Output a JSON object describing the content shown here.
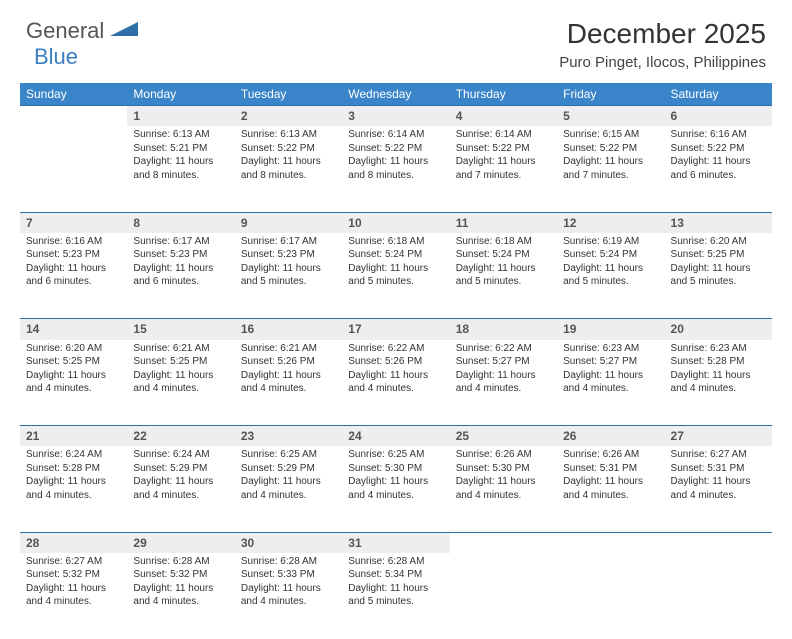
{
  "logo": {
    "general": "General",
    "blue": "Blue",
    "shape_color": "#2e6fa8"
  },
  "title": "December 2025",
  "location": "Puro Pinget, Ilocos, Philippines",
  "header_bg": "#3a85c9",
  "header_fg": "#ffffff",
  "daynum_bg": "#eceef0",
  "divider_color": "#2e6fa8",
  "text_color": "#333333",
  "weekdays": [
    "Sunday",
    "Monday",
    "Tuesday",
    "Wednesday",
    "Thursday",
    "Friday",
    "Saturday"
  ],
  "weeks": [
    {
      "nums": [
        "",
        "1",
        "2",
        "3",
        "4",
        "5",
        "6"
      ],
      "cells": [
        null,
        {
          "sunrise": "Sunrise: 6:13 AM",
          "sunset": "Sunset: 5:21 PM",
          "day1": "Daylight: 11 hours",
          "day2": "and 8 minutes."
        },
        {
          "sunrise": "Sunrise: 6:13 AM",
          "sunset": "Sunset: 5:22 PM",
          "day1": "Daylight: 11 hours",
          "day2": "and 8 minutes."
        },
        {
          "sunrise": "Sunrise: 6:14 AM",
          "sunset": "Sunset: 5:22 PM",
          "day1": "Daylight: 11 hours",
          "day2": "and 8 minutes."
        },
        {
          "sunrise": "Sunrise: 6:14 AM",
          "sunset": "Sunset: 5:22 PM",
          "day1": "Daylight: 11 hours",
          "day2": "and 7 minutes."
        },
        {
          "sunrise": "Sunrise: 6:15 AM",
          "sunset": "Sunset: 5:22 PM",
          "day1": "Daylight: 11 hours",
          "day2": "and 7 minutes."
        },
        {
          "sunrise": "Sunrise: 6:16 AM",
          "sunset": "Sunset: 5:22 PM",
          "day1": "Daylight: 11 hours",
          "day2": "and 6 minutes."
        }
      ]
    },
    {
      "nums": [
        "7",
        "8",
        "9",
        "10",
        "11",
        "12",
        "13"
      ],
      "cells": [
        {
          "sunrise": "Sunrise: 6:16 AM",
          "sunset": "Sunset: 5:23 PM",
          "day1": "Daylight: 11 hours",
          "day2": "and 6 minutes."
        },
        {
          "sunrise": "Sunrise: 6:17 AM",
          "sunset": "Sunset: 5:23 PM",
          "day1": "Daylight: 11 hours",
          "day2": "and 6 minutes."
        },
        {
          "sunrise": "Sunrise: 6:17 AM",
          "sunset": "Sunset: 5:23 PM",
          "day1": "Daylight: 11 hours",
          "day2": "and 5 minutes."
        },
        {
          "sunrise": "Sunrise: 6:18 AM",
          "sunset": "Sunset: 5:24 PM",
          "day1": "Daylight: 11 hours",
          "day2": "and 5 minutes."
        },
        {
          "sunrise": "Sunrise: 6:18 AM",
          "sunset": "Sunset: 5:24 PM",
          "day1": "Daylight: 11 hours",
          "day2": "and 5 minutes."
        },
        {
          "sunrise": "Sunrise: 6:19 AM",
          "sunset": "Sunset: 5:24 PM",
          "day1": "Daylight: 11 hours",
          "day2": "and 5 minutes."
        },
        {
          "sunrise": "Sunrise: 6:20 AM",
          "sunset": "Sunset: 5:25 PM",
          "day1": "Daylight: 11 hours",
          "day2": "and 5 minutes."
        }
      ]
    },
    {
      "nums": [
        "14",
        "15",
        "16",
        "17",
        "18",
        "19",
        "20"
      ],
      "cells": [
        {
          "sunrise": "Sunrise: 6:20 AM",
          "sunset": "Sunset: 5:25 PM",
          "day1": "Daylight: 11 hours",
          "day2": "and 4 minutes."
        },
        {
          "sunrise": "Sunrise: 6:21 AM",
          "sunset": "Sunset: 5:25 PM",
          "day1": "Daylight: 11 hours",
          "day2": "and 4 minutes."
        },
        {
          "sunrise": "Sunrise: 6:21 AM",
          "sunset": "Sunset: 5:26 PM",
          "day1": "Daylight: 11 hours",
          "day2": "and 4 minutes."
        },
        {
          "sunrise": "Sunrise: 6:22 AM",
          "sunset": "Sunset: 5:26 PM",
          "day1": "Daylight: 11 hours",
          "day2": "and 4 minutes."
        },
        {
          "sunrise": "Sunrise: 6:22 AM",
          "sunset": "Sunset: 5:27 PM",
          "day1": "Daylight: 11 hours",
          "day2": "and 4 minutes."
        },
        {
          "sunrise": "Sunrise: 6:23 AM",
          "sunset": "Sunset: 5:27 PM",
          "day1": "Daylight: 11 hours",
          "day2": "and 4 minutes."
        },
        {
          "sunrise": "Sunrise: 6:23 AM",
          "sunset": "Sunset: 5:28 PM",
          "day1": "Daylight: 11 hours",
          "day2": "and 4 minutes."
        }
      ]
    },
    {
      "nums": [
        "21",
        "22",
        "23",
        "24",
        "25",
        "26",
        "27"
      ],
      "cells": [
        {
          "sunrise": "Sunrise: 6:24 AM",
          "sunset": "Sunset: 5:28 PM",
          "day1": "Daylight: 11 hours",
          "day2": "and 4 minutes."
        },
        {
          "sunrise": "Sunrise: 6:24 AM",
          "sunset": "Sunset: 5:29 PM",
          "day1": "Daylight: 11 hours",
          "day2": "and 4 minutes."
        },
        {
          "sunrise": "Sunrise: 6:25 AM",
          "sunset": "Sunset: 5:29 PM",
          "day1": "Daylight: 11 hours",
          "day2": "and 4 minutes."
        },
        {
          "sunrise": "Sunrise: 6:25 AM",
          "sunset": "Sunset: 5:30 PM",
          "day1": "Daylight: 11 hours",
          "day2": "and 4 minutes."
        },
        {
          "sunrise": "Sunrise: 6:26 AM",
          "sunset": "Sunset: 5:30 PM",
          "day1": "Daylight: 11 hours",
          "day2": "and 4 minutes."
        },
        {
          "sunrise": "Sunrise: 6:26 AM",
          "sunset": "Sunset: 5:31 PM",
          "day1": "Daylight: 11 hours",
          "day2": "and 4 minutes."
        },
        {
          "sunrise": "Sunrise: 6:27 AM",
          "sunset": "Sunset: 5:31 PM",
          "day1": "Daylight: 11 hours",
          "day2": "and 4 minutes."
        }
      ]
    },
    {
      "nums": [
        "28",
        "29",
        "30",
        "31",
        "",
        "",
        ""
      ],
      "cells": [
        {
          "sunrise": "Sunrise: 6:27 AM",
          "sunset": "Sunset: 5:32 PM",
          "day1": "Daylight: 11 hours",
          "day2": "and 4 minutes."
        },
        {
          "sunrise": "Sunrise: 6:28 AM",
          "sunset": "Sunset: 5:32 PM",
          "day1": "Daylight: 11 hours",
          "day2": "and 4 minutes."
        },
        {
          "sunrise": "Sunrise: 6:28 AM",
          "sunset": "Sunset: 5:33 PM",
          "day1": "Daylight: 11 hours",
          "day2": "and 4 minutes."
        },
        {
          "sunrise": "Sunrise: 6:28 AM",
          "sunset": "Sunset: 5:34 PM",
          "day1": "Daylight: 11 hours",
          "day2": "and 5 minutes."
        },
        null,
        null,
        null
      ]
    }
  ]
}
